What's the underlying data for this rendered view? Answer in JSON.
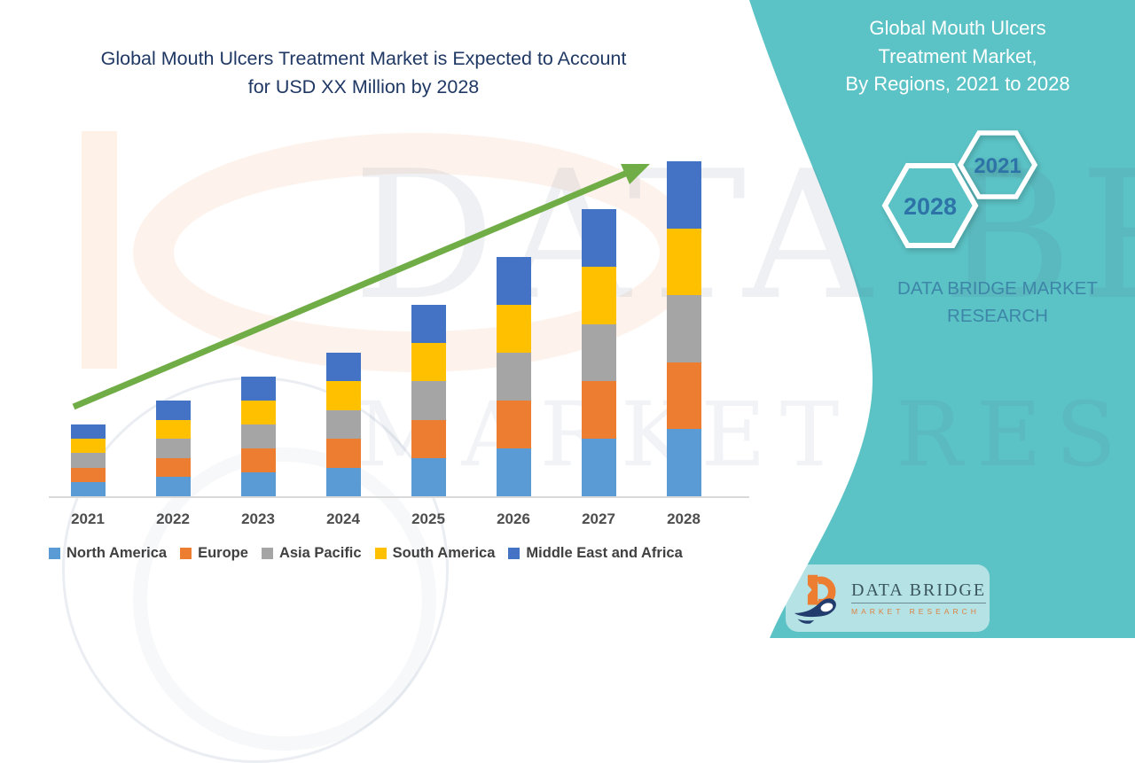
{
  "main_title": {
    "line1": "Global Mouth Ulcers Treatment Market is Expected to Account",
    "line2": "for USD XX Million by 2028",
    "color": "#1F3864"
  },
  "side_panel": {
    "background_color": "#5BC2C5",
    "title_line1": "Global Mouth Ulcers",
    "title_line2": "Treatment Market,",
    "title_line3": "By Regions,  2021 to 2028",
    "hexagon_small_year": "2021",
    "hexagon_large_year": "2028",
    "brand_line1": "DATA BRIDGE MARKET",
    "brand_line2": "RESEARCH"
  },
  "logo_card": {
    "name": "DATA BRIDGE",
    "tagline": "MARKET RESEARCH"
  },
  "watermark": {
    "text_top": "DATA BRIDGE",
    "text_bottom": "MARKET RESEARCH"
  },
  "chart_data": {
    "type": "bar",
    "stacked": true,
    "title": "Global Mouth Ulcers Treatment Market is Expected to Account for USD XX Million by 2028",
    "xlabel": "",
    "ylabel": "",
    "y_axis_shown": false,
    "grid": false,
    "legend_position": "bottom",
    "categories": [
      "2021",
      "2022",
      "2023",
      "2024",
      "2025",
      "2026",
      "2027",
      "2028"
    ],
    "series": [
      {
        "name": "North America",
        "color": "#5B9BD5",
        "values": [
          0.6,
          0.8,
          1.0,
          1.2,
          1.6,
          2.0,
          2.4,
          2.8
        ]
      },
      {
        "name": "Europe",
        "color": "#ED7D31",
        "values": [
          0.6,
          0.8,
          1.0,
          1.2,
          1.6,
          2.0,
          2.4,
          2.8
        ]
      },
      {
        "name": "Asia Pacific",
        "color": "#A5A5A5",
        "values": [
          0.6,
          0.8,
          1.0,
          1.2,
          1.6,
          2.0,
          2.4,
          2.8
        ]
      },
      {
        "name": "South America",
        "color": "#FFC000",
        "values": [
          0.6,
          0.8,
          1.0,
          1.2,
          1.6,
          2.0,
          2.4,
          2.8
        ]
      },
      {
        "name": "Middle East and Africa",
        "color": "#4472C4",
        "values": [
          0.6,
          0.8,
          1.0,
          1.2,
          1.6,
          2.0,
          2.4,
          2.8
        ]
      }
    ],
    "stack_totals": [
      3,
      4,
      5,
      6,
      8,
      10,
      12,
      14
    ],
    "ylim": [
      0,
      14.5
    ],
    "value_note": "source masks values as 'USD XX Million'; series values are relative units read from bar heights",
    "trend_arrow": {
      "shown": true,
      "color": "#70AD47",
      "from_category": "2021",
      "to_category": "2028"
    }
  }
}
